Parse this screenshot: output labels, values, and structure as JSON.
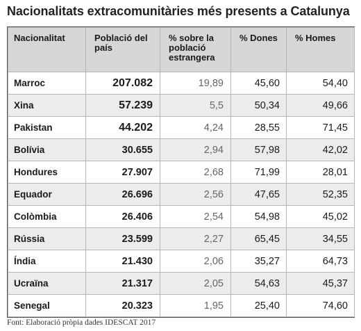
{
  "title": "Nacionalitats extracomunitàries més presents a Catalunya",
  "table": {
    "headers": {
      "nationality": "Nacionalitat",
      "population": "Població del país",
      "pct_foreign": "% sobre la població estrangera",
      "women": "% Dones",
      "men": "% Homes"
    },
    "rows": [
      {
        "nationality": "Marroc",
        "population": "207.082",
        "pct_foreign": "19,89",
        "women": "45,60",
        "men": "54,40"
      },
      {
        "nationality": "Xina",
        "population": "57.239",
        "pct_foreign": "5,5",
        "women": "50,34",
        "men": "49,66"
      },
      {
        "nationality": "Pakistan",
        "population": "44.202",
        "pct_foreign": "4,24",
        "women": "28,55",
        "men": "71,45"
      },
      {
        "nationality": "Bolívia",
        "population": "30.655",
        "pct_foreign": "2,94",
        "women": "57,98",
        "men": "42,02"
      },
      {
        "nationality": "Hondures",
        "population": "27.907",
        "pct_foreign": "2,68",
        "women": "71,99",
        "men": "28,01"
      },
      {
        "nationality": "Equador",
        "population": "26.696",
        "pct_foreign": "2,56",
        "women": "47,65",
        "men": "52,35"
      },
      {
        "nationality": "Colòmbia",
        "population": "26.406",
        "pct_foreign": "2,54",
        "women": "54,98",
        "men": "45,02"
      },
      {
        "nationality": "Rússia",
        "population": "23.599",
        "pct_foreign": "2,27",
        "women": "65,45",
        "men": "34,55"
      },
      {
        "nationality": "Índia",
        "population": "21.430",
        "pct_foreign": "2,06",
        "women": "35,27",
        "men": "64,73"
      },
      {
        "nationality": "Ucraïna",
        "population": "21.317",
        "pct_foreign": "2,05",
        "women": "54,63",
        "men": "45,37"
      },
      {
        "nationality": "Senegal",
        "population": "20.323",
        "pct_foreign": "1,95",
        "women": "25,40",
        "men": "74,60"
      }
    ]
  },
  "source": "Font: Elaboració pròpia dades IDESCAT 2017"
}
